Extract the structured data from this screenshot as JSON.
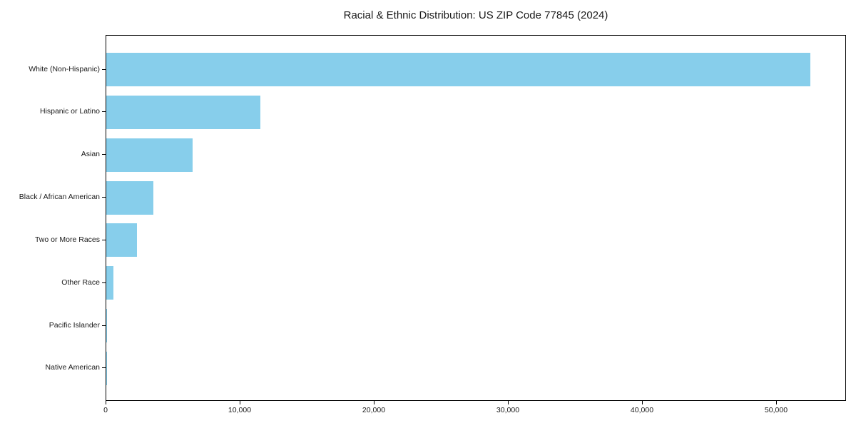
{
  "chart_data": {
    "type": "bar",
    "orientation": "horizontal",
    "title": "Racial & Ethnic Distribution: US ZIP Code 77845 (2024)",
    "categories": [
      "White (Non-Hispanic)",
      "Hispanic or Latino",
      "Asian",
      "Black / African American",
      "Two or More Races",
      "Other Race",
      "Pacific Islander",
      "Native American"
    ],
    "values": [
      52500,
      11500,
      6450,
      3500,
      2300,
      550,
      60,
      30
    ],
    "xlabel": "",
    "ylabel": "",
    "xlim": [
      0,
      55213
    ],
    "xticks": [
      {
        "value": 0,
        "label": "0"
      },
      {
        "value": 10000,
        "label": "10,000"
      },
      {
        "value": 20000,
        "label": "20,000"
      },
      {
        "value": 30000,
        "label": "30,000"
      },
      {
        "value": 40000,
        "label": "40,000"
      },
      {
        "value": 50000,
        "label": "50,000"
      }
    ],
    "grid": false,
    "legend": false,
    "bar_color": "#87CEEB",
    "frame_color": "#000000",
    "text_color": "#1a1a1a",
    "background_color": "#ffffff"
  }
}
